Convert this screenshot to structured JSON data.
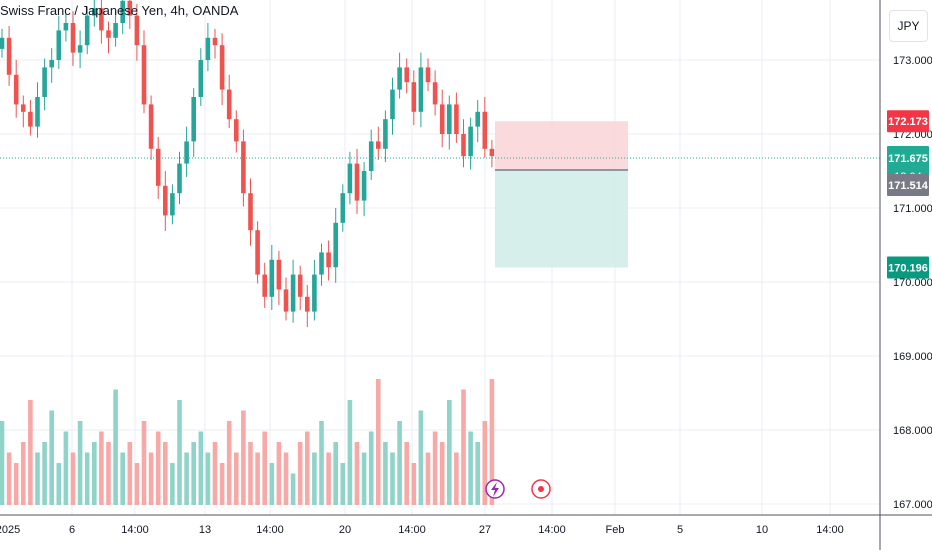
{
  "chart_title": "Swiss Franc / Japanese Yen, 4h, OANDA",
  "currency_button": "JPY",
  "colors": {
    "up": "#26a69a",
    "down": "#ef5350",
    "up_volume": "#8fd3c9",
    "down_volume": "#f7a9a7",
    "grid": "#e9eef5",
    "axis_text": "#131722",
    "stop_zone": "#f9d4d6",
    "target_zone": "#d0ece6",
    "stop_label": "#f23645",
    "current_label": "#22ab94",
    "entry_label": "#787b86",
    "target_label": "#089981",
    "flash_icon": "#9c27b0",
    "record_icon": "#f23645"
  },
  "chart_data": {
    "type": "candlestick",
    "title": "Swiss Franc / Japanese Yen, 4h, OANDA",
    "y_axis": {
      "range": [
        167.0,
        173.4
      ],
      "ticks": [
        "173.000",
        "172.000",
        "171.000",
        "170.000",
        "169.000",
        "168.000",
        "167.000"
      ]
    },
    "x_axis": {
      "tick_labels": [
        "2025",
        "6",
        "14:00",
        "13",
        "14:00",
        "20",
        "14:00",
        "27",
        "14:00",
        "Feb",
        "5",
        "10",
        "14:00"
      ]
    },
    "closes": [
      173.3,
      172.8,
      172.4,
      172.3,
      172.1,
      172.5,
      172.9,
      173.0,
      173.4,
      173.5,
      173.1,
      173.2,
      173.6,
      173.7,
      173.4,
      173.3,
      173.5,
      173.8,
      173.6,
      173.2,
      172.4,
      171.8,
      171.3,
      170.9,
      171.2,
      171.6,
      171.9,
      172.5,
      173.0,
      173.3,
      173.2,
      172.6,
      172.2,
      171.9,
      171.2,
      170.7,
      170.1,
      169.8,
      170.3,
      169.9,
      169.6,
      170.1,
      169.8,
      169.6,
      170.1,
      170.4,
      170.2,
      170.8,
      171.2,
      171.6,
      171.1,
      171.5,
      171.9,
      171.8,
      172.2,
      172.6,
      172.9,
      172.7,
      172.3,
      172.9,
      172.7,
      172.4,
      172.0,
      172.4,
      172.0,
      171.7,
      172.1,
      172.3,
      171.8,
      171.7
    ],
    "volumes": [
      8,
      5,
      4,
      6,
      10,
      5,
      6,
      9,
      4,
      7,
      5,
      8,
      5,
      6,
      7,
      6,
      11,
      5,
      6,
      4,
      8,
      5,
      7,
      6,
      4,
      10,
      5,
      6,
      7,
      5,
      6,
      4,
      8,
      5,
      9,
      6,
      5,
      7,
      4,
      6,
      5,
      3,
      6,
      7,
      5,
      8,
      5,
      6,
      4,
      10,
      6,
      5,
      7,
      12,
      6,
      5,
      8,
      6,
      4,
      9,
      5,
      7,
      6,
      10,
      5,
      11,
      7,
      6,
      8,
      12
    ],
    "price_labels": {
      "stop": "172.173",
      "current": "171.675",
      "countdown": "18:04",
      "entry": "171.514",
      "target": "170.196"
    },
    "position": {
      "type": "short",
      "entry": 171.514,
      "stop": 172.173,
      "target": 170.196
    }
  }
}
